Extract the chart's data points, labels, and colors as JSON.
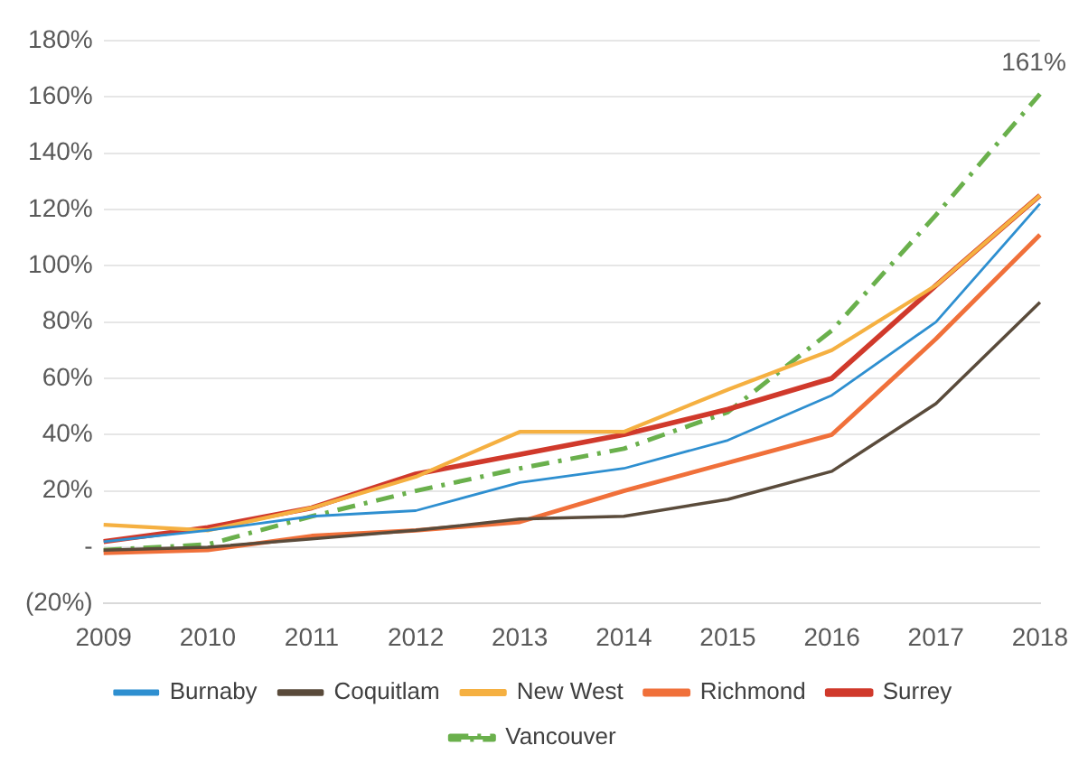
{
  "chart_data": {
    "type": "line",
    "categories": [
      "2009",
      "2010",
      "2011",
      "2012",
      "2013",
      "2014",
      "2015",
      "2016",
      "2017",
      "2018"
    ],
    "series": [
      {
        "name": "Burnaby",
        "color": "#2e8fd0",
        "values": [
          2,
          6,
          11,
          13,
          23,
          28,
          38,
          54,
          80,
          122
        ]
      },
      {
        "name": "Coquitlam",
        "color": "#5a4b3b",
        "values": [
          -1,
          0,
          3,
          6,
          10,
          11,
          17,
          27,
          51,
          87
        ]
      },
      {
        "name": "New West",
        "color": "#f5b041",
        "values": [
          8,
          6,
          14,
          25,
          41,
          41,
          56,
          70,
          93,
          125
        ]
      },
      {
        "name": "Richmond",
        "color": "#f0703a",
        "values": [
          -2,
          -1,
          4,
          6,
          9,
          20,
          30,
          40,
          74,
          111
        ]
      },
      {
        "name": "Surrey",
        "color": "#d0392b",
        "values": [
          2,
          7,
          14,
          26,
          33,
          40,
          49,
          60,
          93,
          125
        ]
      },
      {
        "name": "Vancouver",
        "color": "#6ab04c",
        "line_style": "dashed",
        "values": [
          -1,
          1,
          11,
          20,
          28,
          35,
          48,
          77,
          118,
          161
        ]
      }
    ],
    "ylim": [
      -20,
      180
    ],
    "yticks": [
      {
        "value": -20,
        "label": "(20%)"
      },
      {
        "value": 0,
        "label": "-"
      },
      {
        "value": 20,
        "label": "20%"
      },
      {
        "value": 40,
        "label": "40%"
      },
      {
        "value": 60,
        "label": "60%"
      },
      {
        "value": 80,
        "label": "80%"
      },
      {
        "value": 100,
        "label": "100%"
      },
      {
        "value": 120,
        "label": "120%"
      },
      {
        "value": 140,
        "label": "140%"
      },
      {
        "value": 160,
        "label": "160%"
      },
      {
        "value": 180,
        "label": "180%"
      }
    ],
    "grid": "y",
    "legend": "bottom",
    "marker": "none",
    "annotations": [
      {
        "text": "161%",
        "x": "2018",
        "y": 161
      }
    ]
  }
}
